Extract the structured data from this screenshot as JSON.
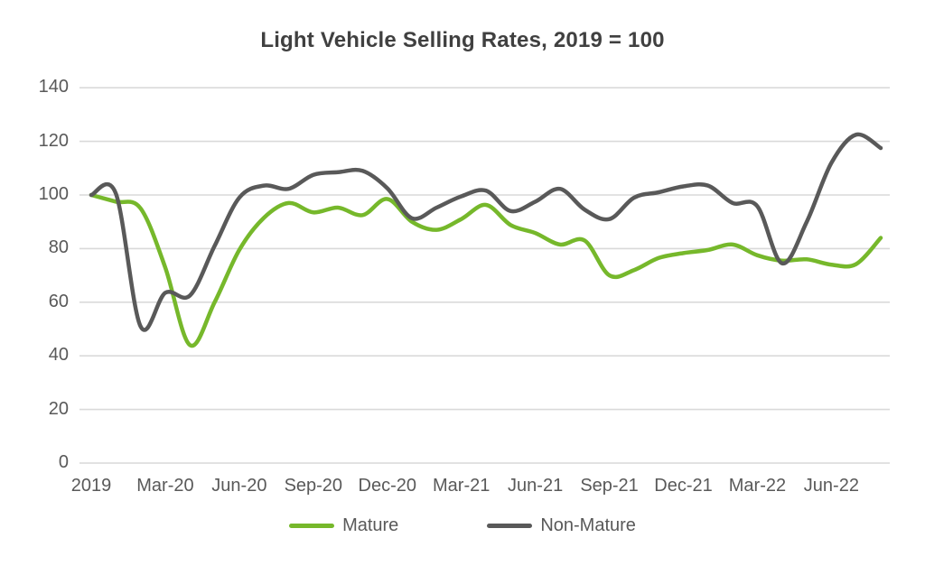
{
  "title": "Light Vehicle Selling Rates, 2019 = 100",
  "colors": {
    "mature_line": "#76B82B",
    "non_mature_line": "#595959",
    "gridline": "#D9D9D9",
    "title_text": "#404040",
    "axis_text": "#595959",
    "background": "#FFFFFF"
  },
  "chart_data": {
    "type": "line",
    "title": "Light Vehicle Selling Rates, 2019 = 100",
    "xlabel": "",
    "ylabel": "",
    "ylim": [
      0,
      140
    ],
    "y_ticks": [
      0,
      20,
      40,
      60,
      80,
      100,
      120,
      140
    ],
    "grid": "horizontal",
    "legend_position": "bottom",
    "x_tick_labels": [
      "2019",
      "Mar-20",
      "Jun-20",
      "Sep-20",
      "Dec-20",
      "Mar-21",
      "Jun-21",
      "Sep-21",
      "Dec-21",
      "Mar-22",
      "Jun-22"
    ],
    "x_tick_every": 3,
    "categories": [
      "2019",
      "Jan-20",
      "Feb-20",
      "Mar-20",
      "Apr-20",
      "May-20",
      "Jun-20",
      "Jul-20",
      "Aug-20",
      "Sep-20",
      "Oct-20",
      "Nov-20",
      "Dec-20",
      "Jan-21",
      "Feb-21",
      "Mar-21",
      "Apr-21",
      "May-21",
      "Jun-21",
      "Jul-21",
      "Aug-21",
      "Sep-21",
      "Oct-21",
      "Nov-21",
      "Dec-21",
      "Jan-22",
      "Feb-22",
      "Mar-22",
      "Apr-22",
      "May-22",
      "Jun-22",
      "Jul-22",
      "Aug-22"
    ],
    "series": [
      {
        "name": "Mature",
        "color": "#76B82B",
        "values": [
          100,
          97.5,
          95,
          73,
          44,
          60,
          79.5,
          91.5,
          97,
          93.5,
          95.3,
          92.5,
          98.5,
          90,
          87,
          91,
          96.3,
          88.8,
          85.8,
          81.5,
          83,
          70,
          72,
          76.5,
          78.3,
          79.5,
          81.5,
          77.5,
          75.5,
          76,
          74,
          74.2,
          84
        ]
      },
      {
        "name": "Non-Mature",
        "color": "#595959",
        "values": [
          100,
          100.5,
          51,
          63.5,
          62.5,
          81,
          99,
          103.5,
          102.3,
          107.5,
          108.5,
          109,
          102.5,
          91.3,
          95.3,
          99.5,
          101.6,
          94,
          97.5,
          102.3,
          94.5,
          91,
          99,
          101,
          103.2,
          103.5,
          97,
          95.8,
          74.5,
          90,
          112,
          122.5,
          117.5
        ]
      }
    ]
  },
  "legend": {
    "items": [
      {
        "label": "Mature"
      },
      {
        "label": "Non-Mature"
      }
    ]
  }
}
